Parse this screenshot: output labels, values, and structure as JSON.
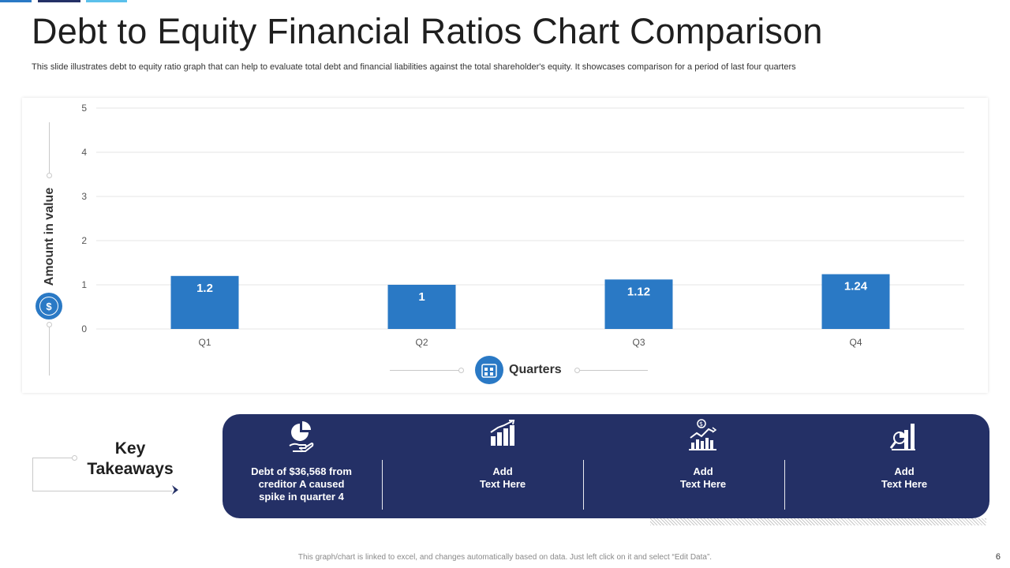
{
  "header": {
    "title": "Debt to Equity Financial Ratios Chart Comparison",
    "subtitle": "This slide illustrates debt to equity ratio graph that can help to evaluate total debt and financial liabilities against the total shareholder's equity. It showcases comparison for a period of last four quarters"
  },
  "colors": {
    "bar": "#2a79c5",
    "panel": "#243066",
    "accent_light": "#5bc0eb"
  },
  "chart_data": {
    "type": "bar",
    "categories": [
      "Q1",
      "Q2",
      "Q3",
      "Q4"
    ],
    "values": [
      1.2,
      1,
      1.12,
      1.24
    ],
    "data_labels": [
      "1.2",
      "1",
      "1.12",
      "1.24"
    ],
    "xlabel": "Quarters",
    "ylabel": "Amount in value",
    "ylim": [
      0,
      5
    ],
    "yticks": [
      "0",
      "1",
      "2",
      "3",
      "4",
      "5"
    ],
    "grid": true,
    "legend": "none"
  },
  "icons": {
    "ylabel_icon": "dollar-circle-icon",
    "xlabel_icon": "calendar-circle-icon"
  },
  "takeaways": {
    "title_line1": "Key",
    "title_line2": "Takeaways",
    "items": [
      {
        "icon": "pie-chart-hand-icon",
        "line1": "Debt of $36,568 from",
        "line2": "creditor A caused",
        "line3": "spike in quarter 4"
      },
      {
        "icon": "bar-chart-icon",
        "line1": "Add",
        "line2": "Text Here",
        "line3": ""
      },
      {
        "icon": "dollar-growth-chart-icon",
        "line1": "Add",
        "line2": "Text Here",
        "line3": ""
      },
      {
        "icon": "analytics-icon",
        "line1": "Add",
        "line2": "Text Here",
        "line3": ""
      }
    ]
  },
  "footer": {
    "note": "This graph/chart is linked to excel, and changes automatically based on data. Just left click on it and select “Edit Data”.",
    "page_number": "6"
  }
}
